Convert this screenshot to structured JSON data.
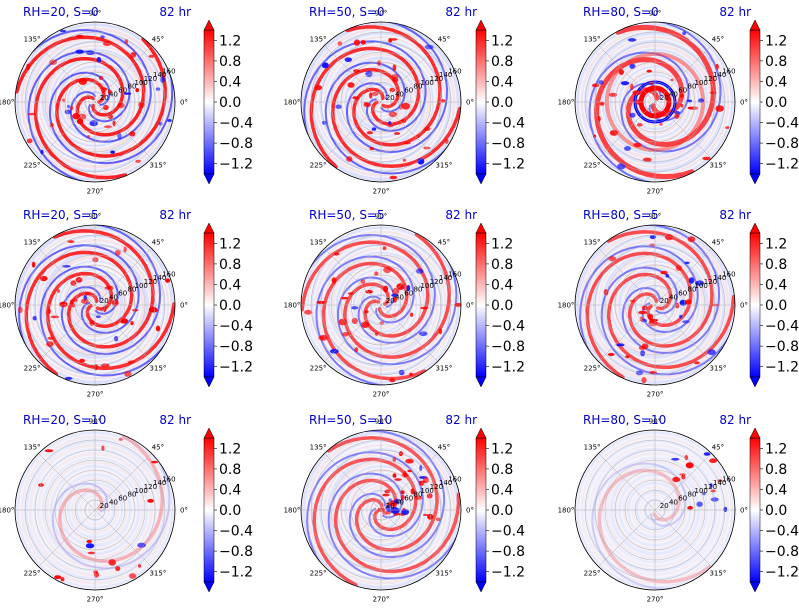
{
  "chart_data": {
    "type": "heatmap",
    "projection": "polar",
    "colormap": "bwr",
    "colors": {
      "negative": "#0000ff",
      "zero": "#ffffff",
      "positive": "#ff0000",
      "title": "#0000cc"
    },
    "colorbar": {
      "extend": "both",
      "range": [
        -1.4,
        1.4
      ],
      "ticks": [
        1.2,
        0.8,
        0.4,
        0.0,
        -0.4,
        -0.8,
        -1.2
      ],
      "tick_labels": [
        "1.2",
        "0.8",
        "0.4",
        "0.0",
        "−0.4",
        "−0.8",
        "−1.2"
      ]
    },
    "angle_labels": [
      "90°",
      "45°",
      "0°",
      "315°",
      "270°",
      "225°",
      "180°",
      "135°"
    ],
    "radial_labels": [
      "20",
      "40",
      "60",
      "80",
      "100",
      "120",
      "140",
      "160"
    ],
    "time_label": "82 hr",
    "panels": [
      {
        "title": "RH=20, S=0",
        "time": "82 hr",
        "rh": 20,
        "s": 0,
        "intensity": 1.0,
        "spiral": "strong"
      },
      {
        "title": "RH=50, S=0",
        "time": "82 hr",
        "rh": 50,
        "s": 0,
        "intensity": 0.95,
        "spiral": "strong"
      },
      {
        "title": "RH=80, S=0",
        "time": "82 hr",
        "rh": 80,
        "s": 0,
        "intensity": 0.85,
        "spiral": "core"
      },
      {
        "title": "RH=20, S=5",
        "time": "82 hr",
        "rh": 20,
        "s": 5,
        "intensity": 0.95,
        "spiral": "strong"
      },
      {
        "title": "RH=50, S=5",
        "time": "82 hr",
        "rh": 50,
        "s": 5,
        "intensity": 0.8,
        "spiral": "medium"
      },
      {
        "title": "RH=80, S=5",
        "time": "82 hr",
        "rh": 80,
        "s": 5,
        "intensity": 0.8,
        "spiral": "medium"
      },
      {
        "title": "RH=20, S=10",
        "time": "82 hr",
        "rh": 20,
        "s": 10,
        "intensity": 0.3,
        "spiral": "sparse"
      },
      {
        "title": "RH=50, S=10",
        "time": "82 hr",
        "rh": 50,
        "s": 10,
        "intensity": 0.75,
        "spiral": "sheared"
      },
      {
        "title": "RH=80, S=10",
        "time": "82 hr",
        "rh": 80,
        "s": 10,
        "intensity": 0.25,
        "spiral": "sparse"
      }
    ]
  }
}
